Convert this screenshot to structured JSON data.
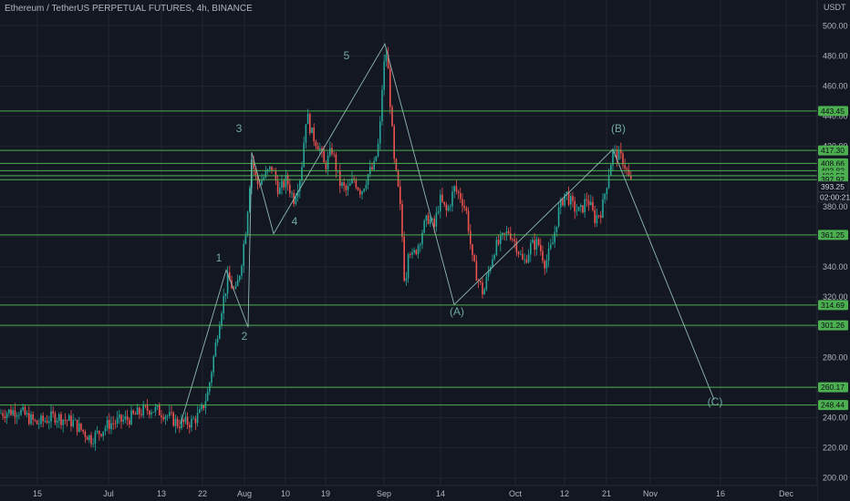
{
  "header": {
    "title": "Ethereum / TetherUS PERPETUAL FUTURES, 4h, BINANCE",
    "axis_unit": "USDT"
  },
  "colors": {
    "background": "#131722",
    "grid": "#1f2433",
    "level": "#4caf50",
    "level_label_bg": "#4caf50",
    "candle_up": "#26a69a",
    "candle_down": "#ef5350",
    "wave_line": "#8fb9b3",
    "wave_label": "#6fa8a0"
  },
  "chart_data": {
    "type": "candlestick",
    "title": "Ethereum / TetherUS PERPETUAL FUTURES, 4h, BINANCE",
    "ylabel": "USDT",
    "ylim": [
      195,
      505
    ],
    "y_ticks": [
      {
        "value": 200,
        "label": "200.00"
      },
      {
        "value": 220,
        "label": "220.00"
      },
      {
        "value": 240,
        "label": "240.00"
      },
      {
        "value": 260,
        "label": "260.00"
      },
      {
        "value": 280,
        "label": "280.00"
      },
      {
        "value": 300,
        "label": "300.00"
      },
      {
        "value": 320,
        "label": "320.00"
      },
      {
        "value": 340,
        "label": "340.00"
      },
      {
        "value": 360,
        "label": "360.00"
      },
      {
        "value": 380,
        "label": "380.00"
      },
      {
        "value": 400,
        "label": "400.00"
      },
      {
        "value": 420,
        "label": "420.00"
      },
      {
        "value": 440,
        "label": "440.00"
      },
      {
        "value": 460,
        "label": "460.00"
      },
      {
        "value": 480,
        "label": "480.00"
      },
      {
        "value": 500,
        "label": "500.00"
      }
    ],
    "x_ticks": [
      "15",
      "Jul",
      "13",
      "22",
      "Aug",
      "10",
      "19",
      "Sep",
      "14",
      "Oct",
      "12",
      "21",
      "Nov",
      "16",
      "Dec"
    ],
    "levels": [
      {
        "value": 443.45,
        "label": "443.45"
      },
      {
        "value": 417.3,
        "label": "417.30"
      },
      {
        "value": 408.66,
        "label": "408.66"
      },
      {
        "value": 403.82,
        "label": "403.82"
      },
      {
        "value": 400.53,
        "label": "400.53"
      },
      {
        "value": 397.92,
        "label": "397.92"
      },
      {
        "value": 361.25,
        "label": "361.25"
      },
      {
        "value": 314.69,
        "label": "314.69"
      },
      {
        "value": 301.26,
        "label": "301.26"
      },
      {
        "value": 260.17,
        "label": "260.17"
      },
      {
        "value": 248.44,
        "label": "248.44"
      }
    ],
    "current_price": {
      "value": 393.25,
      "label": "393.25",
      "countdown": "02:00:21"
    },
    "waves": [
      {
        "label": "1",
        "value": 338
      },
      {
        "label": "2",
        "value": 300
      },
      {
        "label": "3",
        "value": 416
      },
      {
        "label": "4",
        "value": 362
      },
      {
        "label": "5",
        "value": 488
      },
      {
        "label": "(A)",
        "value": 315
      },
      {
        "label": "(B)",
        "value": 418
      },
      {
        "label": "(C)",
        "value": 252
      }
    ],
    "price_path": [
      [
        0,
        243
      ],
      [
        20,
        245
      ],
      [
        40,
        236
      ],
      [
        60,
        241
      ],
      [
        80,
        237
      ],
      [
        100,
        226
      ],
      [
        120,
        236
      ],
      [
        140,
        239
      ],
      [
        155,
        244
      ],
      [
        165,
        246
      ],
      [
        180,
        243
      ],
      [
        195,
        236
      ],
      [
        210,
        237
      ],
      [
        220,
        243
      ],
      [
        228,
        257
      ],
      [
        235,
        283
      ],
      [
        242,
        310
      ],
      [
        250,
        333
      ],
      [
        258,
        322
      ],
      [
        264,
        340
      ],
      [
        270,
        368
      ],
      [
        276,
        412
      ],
      [
        282,
        395
      ],
      [
        290,
        400
      ],
      [
        298,
        406
      ],
      [
        306,
        390
      ],
      [
        314,
        398
      ],
      [
        322,
        385
      ],
      [
        330,
        402
      ],
      [
        336,
        442
      ],
      [
        342,
        428
      ],
      [
        350,
        420
      ],
      [
        356,
        406
      ],
      [
        364,
        418
      ],
      [
        372,
        396
      ],
      [
        380,
        390
      ],
      [
        388,
        398
      ],
      [
        396,
        390
      ],
      [
        404,
        402
      ],
      [
        410,
        406
      ],
      [
        416,
        425
      ],
      [
        420,
        470
      ],
      [
        424,
        484
      ],
      [
        428,
        448
      ],
      [
        432,
        410
      ],
      [
        436,
        394
      ],
      [
        440,
        372
      ],
      [
        444,
        325
      ],
      [
        448,
        356
      ],
      [
        452,
        346
      ],
      [
        458,
        354
      ],
      [
        464,
        366
      ],
      [
        470,
        373
      ],
      [
        476,
        366
      ],
      [
        482,
        385
      ],
      [
        490,
        376
      ],
      [
        498,
        392
      ],
      [
        506,
        386
      ],
      [
        512,
        375
      ],
      [
        518,
        344
      ],
      [
        524,
        332
      ],
      [
        530,
        322
      ],
      [
        536,
        338
      ],
      [
        542,
        352
      ],
      [
        550,
        358
      ],
      [
        558,
        364
      ],
      [
        566,
        355
      ],
      [
        574,
        342
      ],
      [
        582,
        354
      ],
      [
        590,
        356
      ],
      [
        598,
        342
      ],
      [
        606,
        356
      ],
      [
        612,
        376
      ],
      [
        620,
        390
      ],
      [
        628,
        380
      ],
      [
        636,
        376
      ],
      [
        644,
        386
      ],
      [
        652,
        372
      ],
      [
        660,
        378
      ],
      [
        666,
        398
      ],
      [
        672,
        416
      ],
      [
        678,
        414
      ],
      [
        684,
        410
      ],
      [
        690,
        398
      ],
      [
        694,
        393
      ]
    ]
  }
}
